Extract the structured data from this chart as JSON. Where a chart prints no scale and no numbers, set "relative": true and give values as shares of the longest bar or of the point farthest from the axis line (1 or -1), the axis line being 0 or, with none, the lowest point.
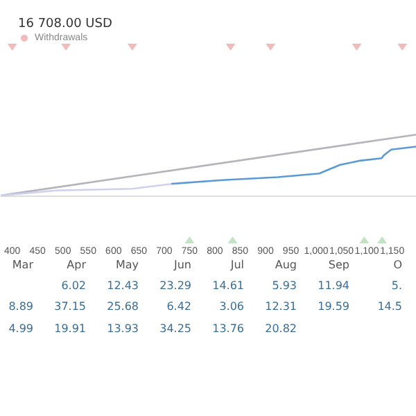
{
  "chart_data": {
    "type": "line",
    "title": "16 708.00 USD",
    "relative": true,
    "legend": "top left",
    "marker": "none",
    "line_style": "solid",
    "xlim": [
      378,
      1197
    ],
    "xticks": [
      400,
      450,
      500,
      550,
      600,
      650,
      700,
      750,
      800,
      850,
      900,
      950,
      {
        "value": 1000,
        "label": "1,000"
      },
      {
        "value": 1050,
        "label": "1,050"
      },
      {
        "value": 1100,
        "label": "1,100"
      },
      {
        "value": 1150,
        "label": "1,150"
      }
    ],
    "series": [
      {
        "color": "#b4b4bc",
        "x": [
          378,
          1197
        ],
        "values": [
          0,
          0.41
        ]
      },
      {
        "color": "#cfd0ee",
        "x": [
          378,
          487,
          637,
          714
        ],
        "values": [
          0,
          0.033,
          0.045,
          0.078
        ]
      },
      {
        "color": "#5b9bd5",
        "x": [
          714,
          815,
          924,
          1006,
          1047,
          1088,
          1129,
          1134,
          1148,
          1197
        ],
        "values": [
          0.078,
          0.103,
          0.123,
          0.148,
          0.206,
          0.235,
          0.251,
          0.272,
          0.309,
          0.329
        ]
      },
      {
        "type": "scatter",
        "name": "Withdrawals",
        "marker": "triangle",
        "color": "#eeaaaa",
        "x": [
          400,
          506,
          637,
          831,
          910,
          1080,
          1170
        ],
        "values": [
          1,
          1,
          1,
          1,
          1,
          1,
          1
        ]
      },
      {
        "type": "scatter",
        "marker": "triangle",
        "color": "#b5dcb5",
        "x": [
          750,
          835,
          1095,
          1130
        ],
        "values": [
          -0.3,
          -0.3,
          -0.3,
          -0.3
        ]
      }
    ],
    "annotations": [
      "Mar",
      "Apr",
      "May",
      "Jun",
      "Jul",
      "Aug",
      "Sep",
      "O",
      "6.02",
      "12.43",
      "23.29",
      "14.61",
      "5.93",
      "11.94",
      "5.",
      "8.89",
      "37.15",
      "25.68",
      "6.42",
      "3.06",
      "12.31",
      "19.59",
      "14.5",
      "4.99",
      "19.91",
      "13.93",
      "34.25",
      "13.76",
      "20.82"
    ]
  }
}
